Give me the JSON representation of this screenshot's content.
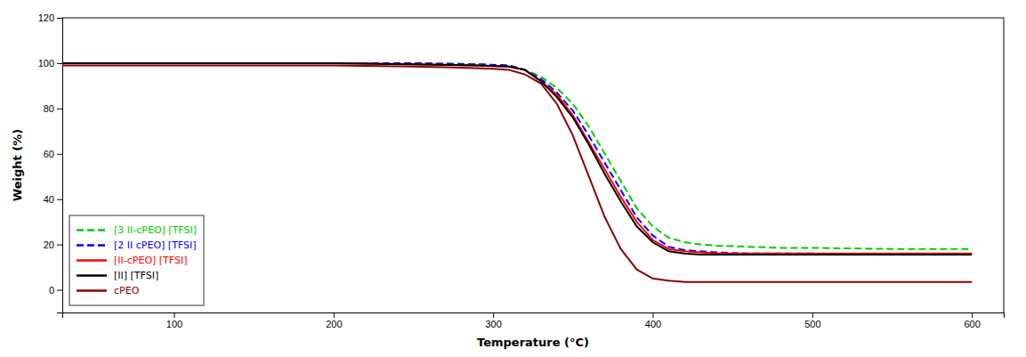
{
  "chart_data": {
    "type": "line",
    "xlabel": "Temperature (°C)",
    "ylabel": "Weight (%)",
    "xlim": [
      30,
      620
    ],
    "ylim": [
      -10,
      120
    ],
    "xticks": [
      100,
      200,
      300,
      400,
      500,
      600
    ],
    "yticks": [
      0,
      20,
      40,
      60,
      80,
      100,
      120
    ],
    "grid": false,
    "legend": "lower left",
    "series": [
      {
        "name": "[3 II-cPEO] [TFSI]",
        "color": "#00cc00",
        "line_style": "dashed",
        "x": [
          30,
          50,
          100,
          150,
          200,
          250,
          290,
          310,
          320,
          330,
          340,
          350,
          360,
          370,
          380,
          390,
          400,
          410,
          420,
          430,
          440,
          460,
          480,
          500,
          550,
          600
        ],
        "values": [
          100,
          100,
          100,
          100,
          100,
          100,
          99.5,
          99,
          97,
          94,
          89,
          82,
          72,
          60,
          48,
          36,
          28,
          23,
          21,
          20,
          19.5,
          19,
          18.5,
          18.5,
          18,
          18
        ]
      },
      {
        "name": "[2 II cPEO] [TFSI]",
        "color": "#0000ff",
        "line_style": "dashed",
        "x": [
          30,
          50,
          100,
          150,
          200,
          250,
          290,
          310,
          320,
          330,
          340,
          350,
          360,
          370,
          380,
          390,
          400,
          410,
          420,
          430,
          440,
          460,
          480,
          500,
          550,
          600
        ],
        "values": [
          100,
          100,
          100,
          100,
          100,
          100,
          99.5,
          99,
          97,
          93,
          87,
          79,
          68,
          56,
          44,
          32,
          24,
          19,
          17.5,
          17,
          16.5,
          16,
          16,
          16,
          15.5,
          15.5
        ]
      },
      {
        "name": "[II-cPEO] [TFSI]",
        "color": "#ff0000",
        "line_style": "solid",
        "x": [
          30,
          50,
          100,
          150,
          200,
          250,
          290,
          310,
          320,
          330,
          340,
          350,
          360,
          370,
          380,
          390,
          400,
          410,
          420,
          430,
          440,
          460,
          480,
          500,
          550,
          600
        ],
        "values": [
          100,
          100,
          100,
          100,
          100,
          99.5,
          99,
          98.5,
          97,
          92,
          86,
          77,
          65,
          53,
          41,
          30,
          22,
          18,
          17,
          16.5,
          16,
          16,
          16,
          16,
          16,
          16
        ]
      },
      {
        "name": "[II] [TFSI]",
        "color": "#000000",
        "line_style": "solid",
        "x": [
          30,
          50,
          100,
          150,
          200,
          250,
          290,
          310,
          320,
          330,
          340,
          350,
          360,
          370,
          380,
          390,
          400,
          410,
          420,
          430,
          440,
          460,
          480,
          500,
          550,
          600
        ],
        "values": [
          100,
          100,
          100,
          100,
          100,
          99.5,
          99,
          98.5,
          97,
          92,
          85,
          76,
          64,
          51,
          39,
          28,
          21,
          17,
          16,
          15.5,
          15.5,
          15.5,
          15.5,
          15.5,
          15.5,
          15.5
        ]
      },
      {
        "name": "cPEO",
        "color": "#8b0000",
        "line_style": "solid",
        "x": [
          30,
          50,
          100,
          150,
          200,
          250,
          280,
          300,
          310,
          320,
          330,
          340,
          350,
          360,
          370,
          380,
          390,
          400,
          410,
          420,
          430,
          440,
          460,
          480,
          500,
          550,
          600
        ],
        "values": [
          99,
          99,
          99,
          99,
          99,
          98.5,
          98,
          97.5,
          97,
          95,
          91,
          82,
          68,
          50,
          32,
          18,
          9,
          5,
          4,
          3.5,
          3.5,
          3.5,
          3.5,
          3.5,
          3.5,
          3.5,
          3.5
        ]
      }
    ]
  }
}
